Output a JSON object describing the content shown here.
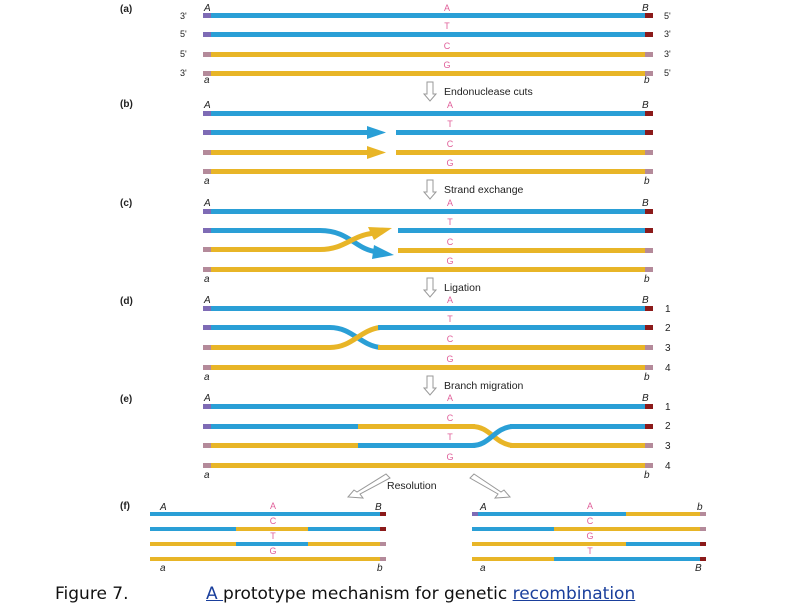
{
  "panels": {
    "a": {
      "label": "(a)",
      "left_marks": [
        "3'",
        "5'",
        "5'",
        "3'"
      ],
      "right_marks": [
        "5'",
        "3'",
        "3'",
        "5'"
      ],
      "end_top_left": "A",
      "end_top_right": "B",
      "end_bottom_left": "a",
      "end_bottom_right": "b",
      "strand_letters": [
        "A",
        "T",
        "C",
        "G"
      ]
    },
    "b": {
      "label": "(b)",
      "step": "Endonuclease cuts",
      "end_top_left": "A",
      "end_top_right": "B",
      "end_bottom_left": "a",
      "end_bottom_right": "b",
      "strand_letters": [
        "A",
        "T",
        "C",
        "G"
      ]
    },
    "c": {
      "label": "(c)",
      "step": "Strand exchange",
      "end_top_left": "A",
      "end_top_right": "B",
      "end_bottom_left": "a",
      "end_bottom_right": "b",
      "strand_letters": [
        "A",
        "T",
        "C",
        "G"
      ]
    },
    "d": {
      "label": "(d)",
      "step": "Ligation",
      "end_top_left": "A",
      "end_top_right": "B",
      "end_bottom_left": "a",
      "end_bottom_right": "b",
      "strand_letters": [
        "A",
        "T",
        "C",
        "G"
      ],
      "strand_numbers": [
        "1",
        "2",
        "3",
        "4"
      ]
    },
    "e": {
      "label": "(e)",
      "step": "Branch migration",
      "end_top_left": "A",
      "end_top_right": "B",
      "end_bottom_left": "a",
      "end_bottom_right": "b",
      "strand_letters": [
        "A",
        "C",
        "T",
        "G"
      ],
      "strand_numbers": [
        "1",
        "2",
        "3",
        "4"
      ]
    },
    "f": {
      "label": "(f)",
      "step": "Resolution",
      "left": {
        "end_top_left": "A",
        "end_top_right": "B",
        "end_bottom_left": "a",
        "end_bottom_right": "b",
        "strand_letters": [
          "A",
          "C",
          "T",
          "G"
        ]
      },
      "right": {
        "end_top_left": "A",
        "end_top_right": "b",
        "end_bottom_left": "a",
        "end_bottom_right": "B",
        "strand_letters": [
          "A",
          "C",
          "G",
          "T"
        ]
      }
    }
  },
  "caption": {
    "figure_label": "Figure 7.",
    "link_a": "A ",
    "text_mid": "prototype mechanism for genetic ",
    "link_recombination": "recombination"
  },
  "colors": {
    "blue": "#2a9fd6",
    "gold": "#e8b527",
    "letter_pink": "#e0609a",
    "end_red": "#8b1a1a",
    "end_purple": "#7e6bb5",
    "end_mauve": "#b48a9a",
    "arrow_gray": "#b9b9b9"
  }
}
